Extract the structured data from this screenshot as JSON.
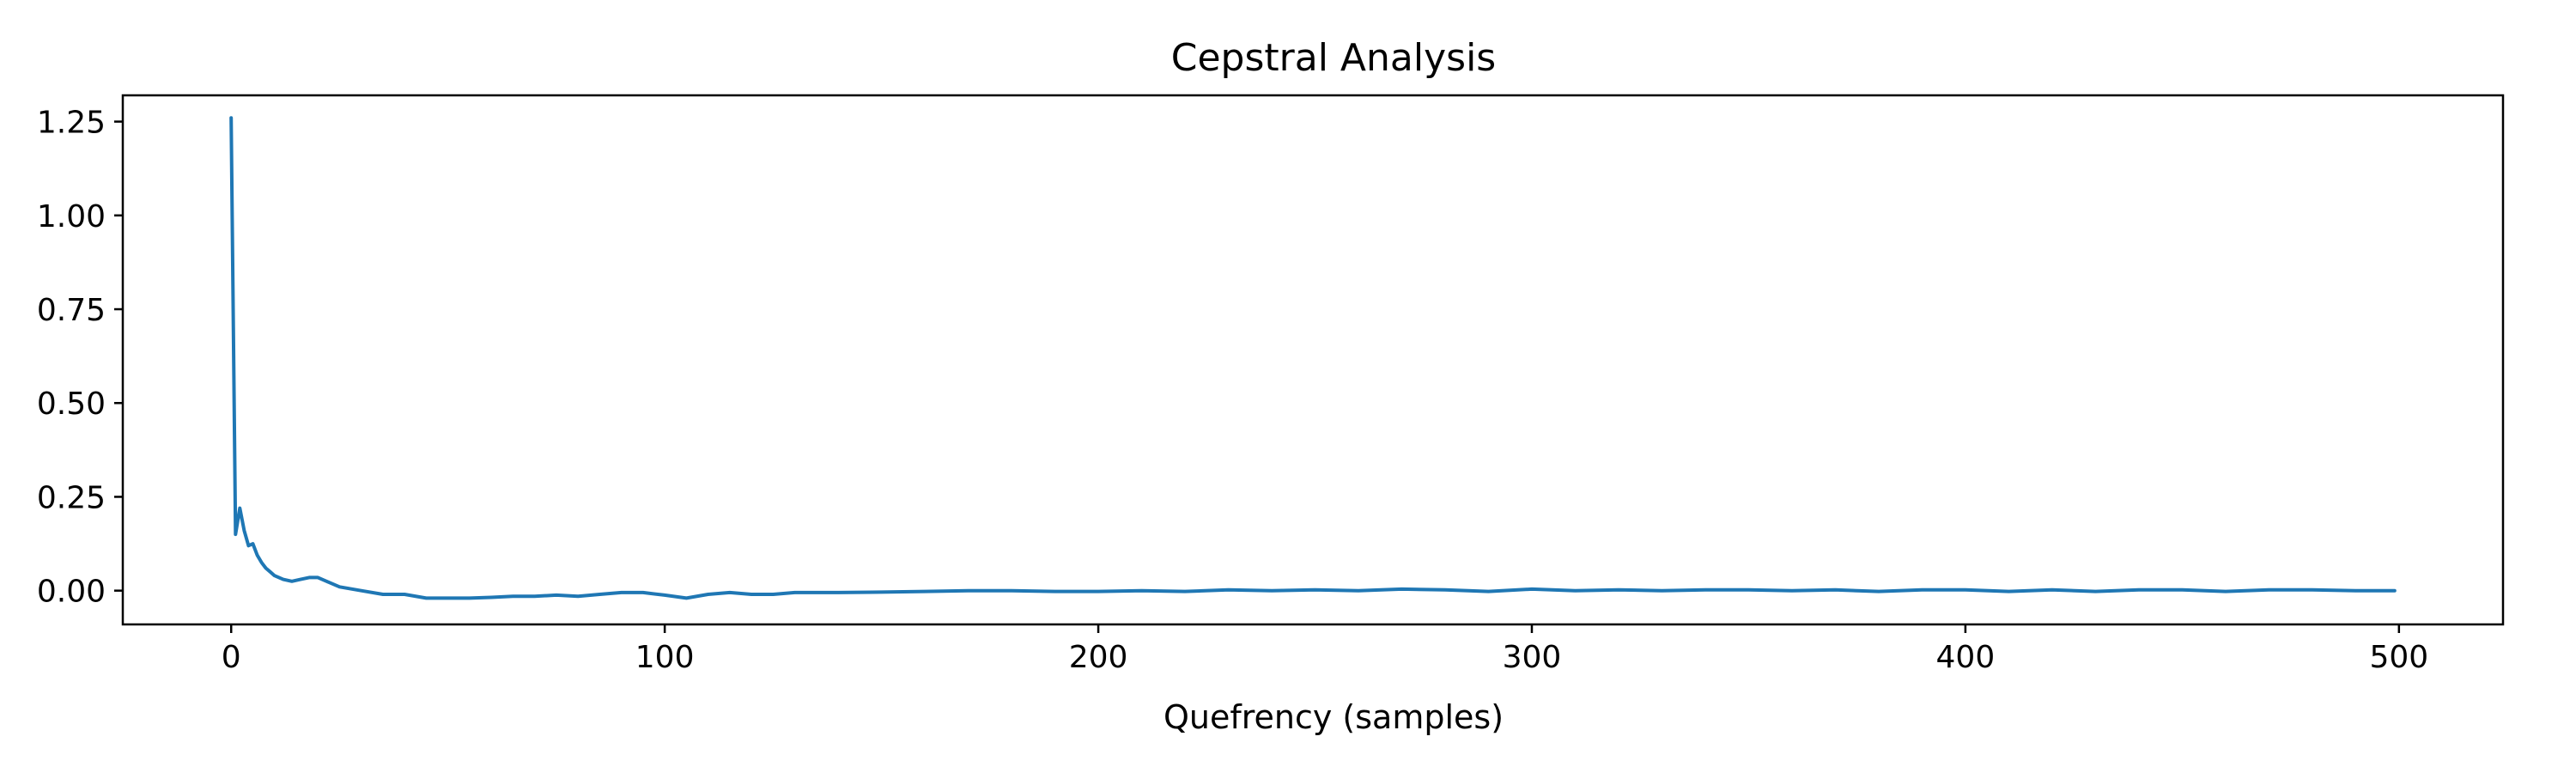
{
  "chart_data": {
    "type": "line",
    "title": "Cepstral Analysis",
    "xlabel": "Quefrency (samples)",
    "ylabel": "",
    "xlim": [
      -25,
      524
    ],
    "ylim": [
      -0.09,
      1.32
    ],
    "xticks": [
      0,
      100,
      200,
      300,
      400,
      500
    ],
    "xtick_labels": [
      "0",
      "100",
      "200",
      "300",
      "400",
      "500"
    ],
    "yticks": [
      0.0,
      0.25,
      0.5,
      0.75,
      1.0,
      1.25
    ],
    "ytick_labels": [
      "0.00",
      "0.25",
      "0.50",
      "0.75",
      "1.00",
      "1.25"
    ],
    "grid": false,
    "series": [
      {
        "color": "#1f77b4",
        "x": [
          0,
          1,
          2,
          3,
          4,
          5,
          6,
          7,
          8,
          9,
          10,
          12,
          14,
          16,
          18,
          20,
          22,
          25,
          30,
          35,
          40,
          45,
          50,
          55,
          60,
          65,
          70,
          75,
          80,
          85,
          90,
          95,
          100,
          105,
          110,
          115,
          120,
          125,
          130,
          140,
          150,
          160,
          170,
          180,
          190,
          200,
          210,
          220,
          230,
          240,
          250,
          260,
          270,
          280,
          290,
          300,
          310,
          320,
          330,
          340,
          350,
          360,
          370,
          380,
          390,
          400,
          410,
          420,
          430,
          440,
          450,
          460,
          470,
          480,
          490,
          499
        ],
        "y": [
          1.26,
          0.15,
          0.22,
          0.16,
          0.12,
          0.125,
          0.095,
          0.075,
          0.06,
          0.05,
          0.04,
          0.03,
          0.025,
          0.03,
          0.035,
          0.035,
          0.025,
          0.01,
          0.0,
          -0.01,
          -0.01,
          -0.02,
          -0.02,
          -0.02,
          -0.018,
          -0.015,
          -0.015,
          -0.012,
          -0.015,
          -0.01,
          -0.005,
          -0.005,
          -0.012,
          -0.02,
          -0.01,
          -0.005,
          -0.01,
          -0.01,
          -0.005,
          -0.005,
          -0.004,
          -0.002,
          0.0,
          0.0,
          -0.002,
          -0.002,
          0.0,
          -0.002,
          0.002,
          0.0,
          0.002,
          0.0,
          0.004,
          0.002,
          -0.002,
          0.004,
          0.0,
          0.002,
          0.0,
          0.002,
          0.002,
          0.0,
          0.002,
          -0.002,
          0.002,
          0.002,
          -0.002,
          0.002,
          -0.002,
          0.002,
          0.002,
          -0.002,
          0.002,
          0.002,
          0.0,
          0.0
        ]
      }
    ]
  }
}
